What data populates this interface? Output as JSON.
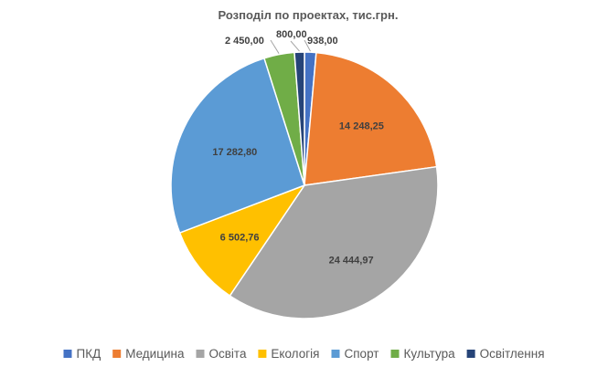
{
  "chart_data": {
    "type": "pie",
    "title": "Розподіл по проектах, тис.грн.",
    "categories": [
      "ПКД",
      "Медицина",
      "Освіта",
      "Екологія",
      "Спорт",
      "Культура",
      "Освітлення"
    ],
    "values": [
      938.0,
      14248.25,
      24444.97,
      6502.76,
      17282.8,
      2450.0,
      800.0
    ],
    "value_labels": [
      "938,00",
      "14 248,25",
      "24 444,97",
      "6 502,76",
      "17 282,80",
      "2 450,00",
      "800,00"
    ],
    "colors": [
      "#4472C4",
      "#ED7D31",
      "#A5A5A5",
      "#FFC000",
      "#5B9BD5",
      "#70AD47",
      "#264478"
    ],
    "start_angle_deg": 0,
    "direction": "clockwise",
    "legend_position": "bottom"
  }
}
